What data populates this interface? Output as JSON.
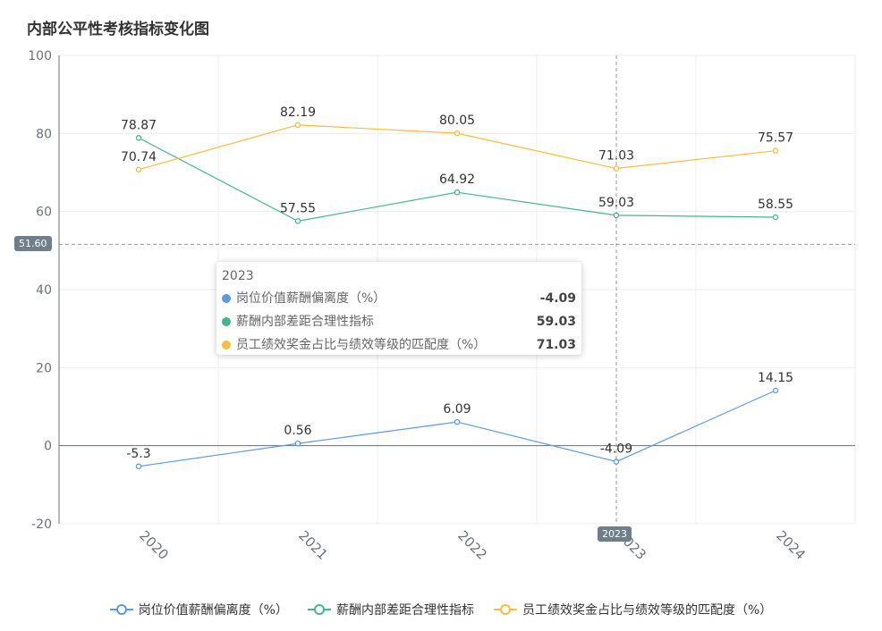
{
  "chart_data": {
    "type": "line",
    "title": "内部公平性考核指标变化图",
    "categories": [
      "2020",
      "2021",
      "2022",
      "2023",
      "2024"
    ],
    "ylim": [
      -20,
      100
    ],
    "yticks": [
      "100",
      "80",
      "60",
      "40",
      "20",
      "0",
      "-20"
    ],
    "series": [
      {
        "name": "岗位价值薪酬偏离度（%）",
        "color": "#5b9bdb",
        "values": [
          -5.3,
          0.56,
          6.09,
          -4.09,
          14.15
        ],
        "labels": [
          "-5.3",
          "0.56",
          "6.09",
          "-4.09",
          "14.15"
        ]
      },
      {
        "name": "薪酬内部差距合理性指标",
        "color": "#46b58f",
        "values": [
          78.87,
          57.55,
          64.92,
          59.03,
          58.55
        ],
        "labels": [
          "78.87",
          "57.55",
          "64.92",
          "59.03",
          "58.55"
        ]
      },
      {
        "name": "员工绩效奖金占比与绩效等级的匹配度（%）",
        "color": "#f5be3c",
        "values": [
          70.74,
          82.19,
          80.05,
          71.03,
          75.57
        ],
        "labels": [
          "70.74",
          "82.19",
          "80.05",
          "71.03",
          "75.57"
        ]
      }
    ],
    "crosshair": {
      "y_value": 51.6,
      "y_label": "51.60",
      "x_label": "2023"
    },
    "tooltip": {
      "title": "2023",
      "rows": [
        {
          "name": "岗位价值薪酬偏离度（%）",
          "value": "-4.09",
          "color": "#5b9bdb"
        },
        {
          "name": "薪酬内部差距合理性指标",
          "value": "59.03",
          "color": "#46b58f"
        },
        {
          "name": "员工绩效奖金占比与绩效等级的匹配度（%）",
          "value": "71.03",
          "color": "#f5be3c"
        }
      ]
    }
  }
}
